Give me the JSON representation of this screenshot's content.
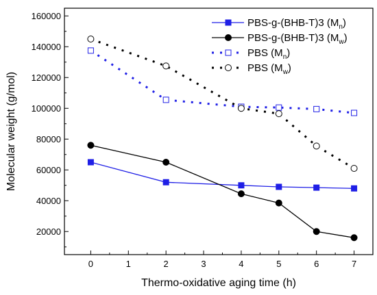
{
  "chart_data": {
    "type": "line",
    "title": "",
    "xlabel": "Thermo-oxidative aging time (h)",
    "ylabel": "Molecular weight (g/mol)",
    "xlim": [
      -0.7,
      7.5
    ],
    "ylim": [
      5000,
      165000
    ],
    "x_ticks": [
      0,
      1,
      2,
      3,
      4,
      5,
      6,
      7
    ],
    "y_ticks": [
      20000,
      40000,
      60000,
      80000,
      100000,
      120000,
      140000,
      160000
    ],
    "grid": false,
    "legend_placement": "top-right",
    "series": [
      {
        "name": "PBS-g-(BHB-T)3 (Mn)",
        "legend_main": "PBS-g-(BHB-T)3 (M",
        "legend_sub": "n",
        "legend_close": ")",
        "color": "#1f1fe6",
        "line": "solid",
        "marker": "filled-square",
        "x": [
          0,
          2,
          4,
          5,
          6,
          7
        ],
        "y": [
          65000,
          52000,
          50000,
          49000,
          48500,
          48000
        ]
      },
      {
        "name": "PBS-g-(BHB-T)3 (Mw)",
        "legend_main": "PBS-g-(BHB-T)3 (M",
        "legend_sub": "w",
        "legend_close": ")",
        "color": "#000000",
        "line": "solid",
        "marker": "filled-circle",
        "x": [
          0,
          2,
          4,
          5,
          6,
          7
        ],
        "y": [
          76000,
          65000,
          44500,
          38500,
          20000,
          16000
        ]
      },
      {
        "name": "PBS (Mn)",
        "legend_main": "PBS (M",
        "legend_sub": "n",
        "legend_close": ")",
        "color": "#1f1fe6",
        "line": "dotted",
        "marker": "open-square",
        "x": [
          0,
          2,
          4,
          5,
          6,
          7
        ],
        "y": [
          137500,
          105500,
          101000,
          100500,
          99500,
          97000
        ]
      },
      {
        "name": "PBS (Mw)",
        "legend_main": "PBS (M",
        "legend_sub": "w",
        "legend_close": ")",
        "color": "#000000",
        "line": "dotted",
        "marker": "open-circle",
        "x": [
          0,
          2,
          4,
          5,
          6,
          7
        ],
        "y": [
          145000,
          127500,
          100000,
          96500,
          75500,
          61000
        ]
      }
    ]
  }
}
